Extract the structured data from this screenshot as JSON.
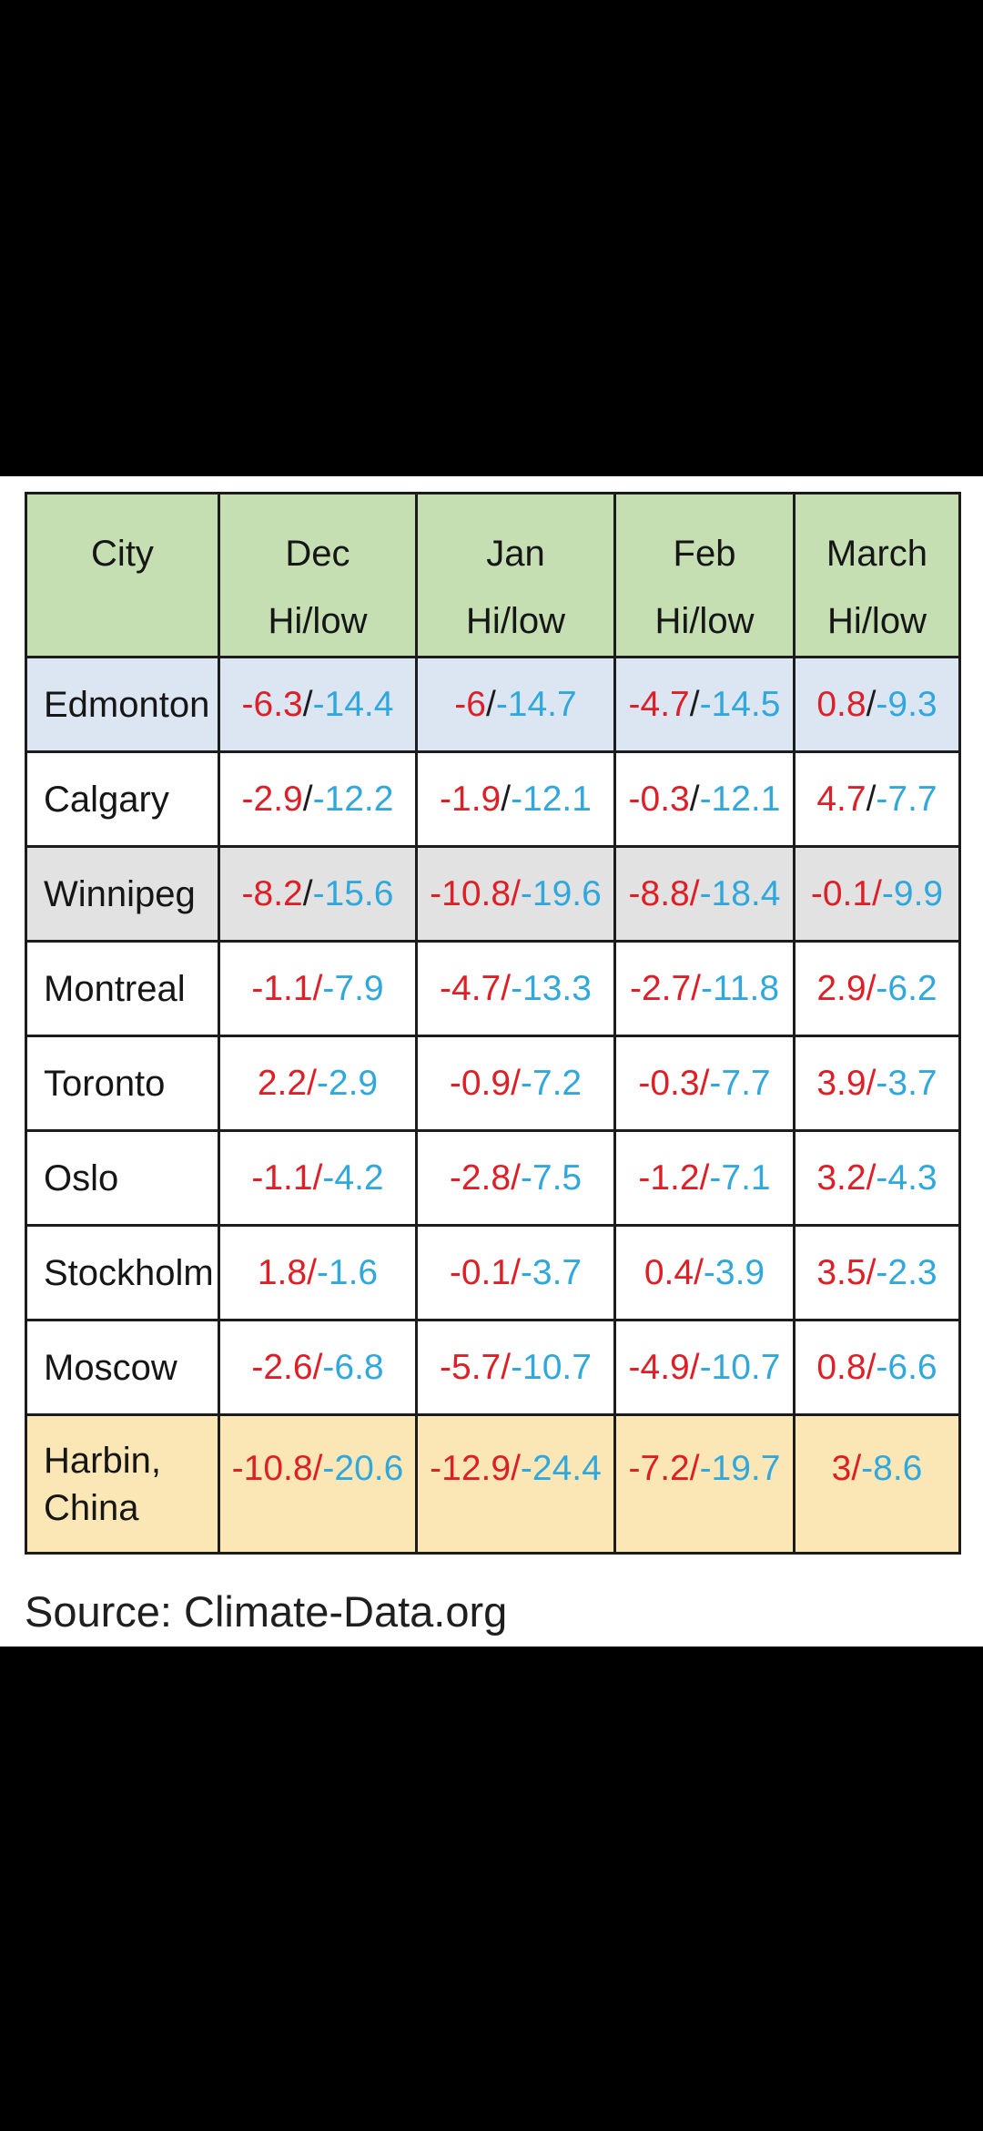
{
  "source_note": "Source: Climate-Data.org",
  "colors": {
    "hi": "#de1f26",
    "low": "#31a8dd",
    "separator_dark": "#1c1c1c",
    "separator_red": "#de1f26",
    "header_bg": "#c5dfb3",
    "border": "#1c1c1c",
    "row_default_bg": "#ffffff",
    "letterbox_bg": "#000000"
  },
  "table": {
    "header": {
      "city_label": "City",
      "sub_label": "Hi/low",
      "months": [
        "Dec",
        "Jan",
        "Feb",
        "March"
      ]
    },
    "rows": [
      {
        "city": "Edmonton",
        "bg": "#dbe6f2",
        "cells": [
          {
            "hi": "-6.3",
            "sep": "dark",
            "low": "-14.4"
          },
          {
            "hi": "-6",
            "sep": "dark",
            "low": "-14.7"
          },
          {
            "hi": "-4.7",
            "sep": "dark",
            "low": "-14.5"
          },
          {
            "hi": "0.8",
            "sep": "dark",
            "low": "-9.3"
          }
        ]
      },
      {
        "city": "Calgary",
        "bg": "#ffffff",
        "cells": [
          {
            "hi": "-2.9",
            "sep": "dark",
            "low": "-12.2"
          },
          {
            "hi": "-1.9",
            "sep": "dark",
            "low": "-12.1"
          },
          {
            "hi": "-0.3",
            "sep": "dark",
            "low": "-12.1"
          },
          {
            "hi": "4.7",
            "sep": "dark",
            "low": "-7.7"
          }
        ]
      },
      {
        "city": "Winnipeg",
        "bg": "#e2e2e2",
        "cells": [
          {
            "hi": "-8.2",
            "sep": "dark",
            "low": "-15.6"
          },
          {
            "hi": "-10.8",
            "sep": "red",
            "low": "-19.6"
          },
          {
            "hi": "-8.8",
            "sep": "red",
            "low": "-18.4"
          },
          {
            "hi": "-0.1",
            "sep": "red",
            "low": "-9.9"
          }
        ]
      },
      {
        "city": "Montreal",
        "bg": "#ffffff",
        "cells": [
          {
            "hi": "-1.1",
            "sep": "red",
            "low": "-7.9"
          },
          {
            "hi": "-4.7",
            "sep": "red",
            "low": "-13.3"
          },
          {
            "hi": "-2.7",
            "sep": "red",
            "low": "-11.8"
          },
          {
            "hi": "2.9",
            "sep": "red",
            "low": "-6.2"
          }
        ]
      },
      {
        "city": "Toronto",
        "bg": "#ffffff",
        "cells": [
          {
            "hi": "2.2",
            "sep": "red",
            "low": "-2.9"
          },
          {
            "hi": "-0.9",
            "sep": "red",
            "low": "-7.2"
          },
          {
            "hi": "-0.3",
            "sep": "red",
            "low": "-7.7"
          },
          {
            "hi": "3.9",
            "sep": "red",
            "low": "-3.7"
          }
        ]
      },
      {
        "city": "Oslo",
        "bg": "#ffffff",
        "cells": [
          {
            "hi": "-1.1",
            "sep": "red",
            "low": "-4.2"
          },
          {
            "hi": "-2.8",
            "sep": "red",
            "low": "-7.5"
          },
          {
            "hi": "-1.2",
            "sep": "red",
            "low": "-7.1"
          },
          {
            "hi": "3.2",
            "sep": "red",
            "low": "-4.3"
          }
        ]
      },
      {
        "city": "Stockholm",
        "bg": "#ffffff",
        "cells": [
          {
            "hi": "1.8",
            "sep": "red",
            "low": "-1.6"
          },
          {
            "hi": "-0.1",
            "sep": "red",
            "low": "-3.7"
          },
          {
            "hi": "0.4",
            "sep": "red",
            "low": "-3.9"
          },
          {
            "hi": "3.5",
            "sep": "red",
            "low": "-2.3"
          }
        ]
      },
      {
        "city": "Moscow",
        "bg": "#ffffff",
        "cells": [
          {
            "hi": "-2.6",
            "sep": "red",
            "low": "-6.8"
          },
          {
            "hi": "-5.7",
            "sep": "red",
            "low": "-10.7"
          },
          {
            "hi": "-4.9",
            "sep": "red",
            "low": "-10.7"
          },
          {
            "hi": "0.8",
            "sep": "red",
            "low": "-6.6"
          }
        ]
      },
      {
        "city": "Harbin, China",
        "bg": "#fbe7b6",
        "tall": true,
        "cells": [
          {
            "hi": "-10.8",
            "sep": "red",
            "low": "-20.6"
          },
          {
            "hi": "-12.9",
            "sep": "red",
            "low": "-24.4"
          },
          {
            "hi": "-7.2",
            "sep": "red",
            "low": "-19.7"
          },
          {
            "hi": "3",
            "sep": "red",
            "low": "-8.6"
          }
        ]
      }
    ]
  },
  "chart_data": {
    "type": "table",
    "title": "Monthly high/low temperatures (°C) by city",
    "columns": [
      "City",
      "Dec Hi/low",
      "Jan Hi/low",
      "Feb Hi/low",
      "March Hi/low"
    ],
    "rows": [
      [
        "Edmonton",
        "-6.3/-14.4",
        "-6/-14.7",
        "-4.7/-14.5",
        "0.8/-9.3"
      ],
      [
        "Calgary",
        "-2.9/-12.2",
        "-1.9/-12.1",
        "-0.3/-12.1",
        "4.7/-7.7"
      ],
      [
        "Winnipeg",
        "-8.2/-15.6",
        "-10.8/-19.6",
        "-8.8/-18.4",
        "-0.1/-9.9"
      ],
      [
        "Montreal",
        "-1.1/-7.9",
        "-4.7/-13.3",
        "-2.7/-11.8",
        "2.9/-6.2"
      ],
      [
        "Toronto",
        "2.2/-2.9",
        "-0.9/-7.2",
        "-0.3/-7.7",
        "3.9/-3.7"
      ],
      [
        "Oslo",
        "-1.1/-4.2",
        "-2.8/-7.5",
        "-1.2/-7.1",
        "3.2/-4.3"
      ],
      [
        "Stockholm",
        "1.8/-1.6",
        "-0.1/-3.7",
        "0.4/-3.9",
        "3.5/-2.3"
      ],
      [
        "Moscow",
        "-2.6/-6.8",
        "-5.7/-10.7",
        "-4.9/-10.7",
        "0.8/-6.6"
      ],
      [
        "Harbin, China",
        "-10.8/-20.6",
        "-12.9/-24.4",
        "-7.2/-19.7",
        "3/-8.6"
      ]
    ],
    "source": "Source: Climate-Data.org"
  }
}
